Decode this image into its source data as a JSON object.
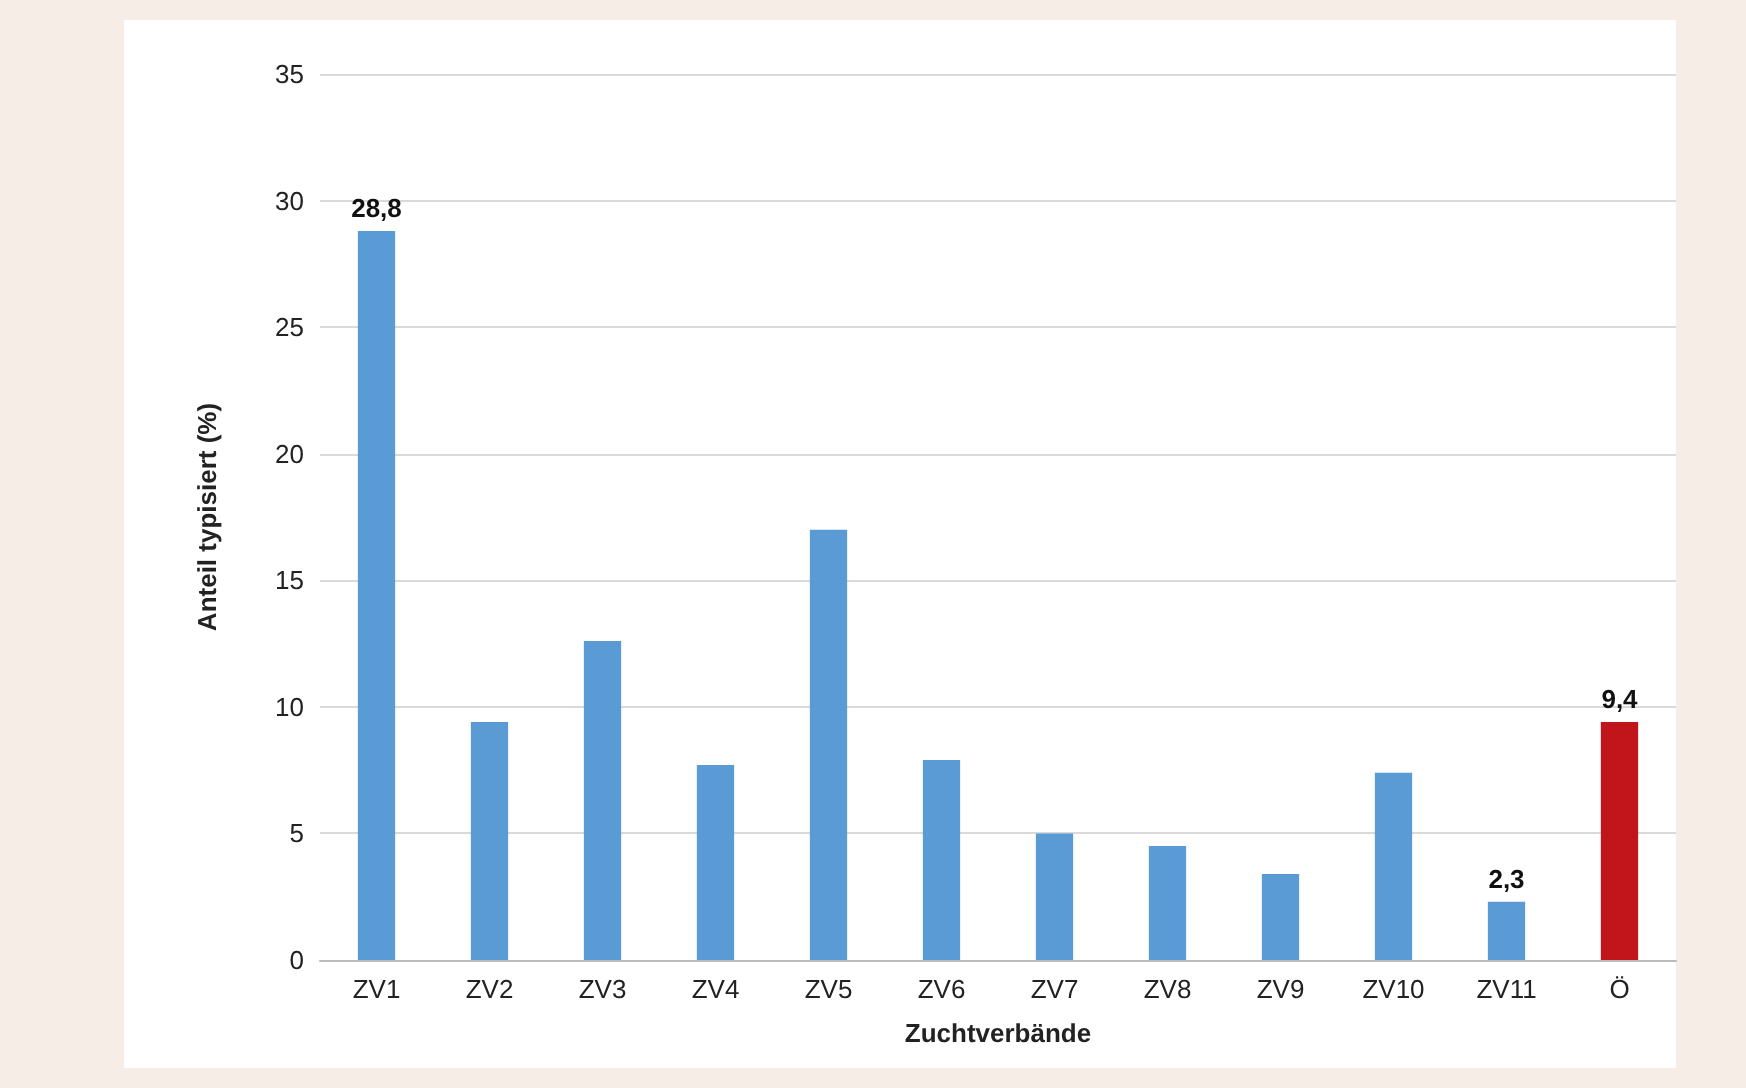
{
  "chart_data": {
    "type": "bar",
    "xlabel": "Zuchtverbände",
    "ylabel": "Anteil typisiert (%)",
    "categories": [
      "ZV1",
      "ZV2",
      "ZV3",
      "ZV4",
      "ZV5",
      "ZV6",
      "ZV7",
      "ZV8",
      "ZV9",
      "ZV10",
      "ZV11",
      "Ö"
    ],
    "values": [
      28.8,
      9.4,
      12.6,
      7.7,
      17.0,
      7.9,
      5.0,
      4.5,
      3.4,
      7.4,
      2.3,
      9.4
    ],
    "colors": [
      "#5b9bd5",
      "#5b9bd5",
      "#5b9bd5",
      "#5b9bd5",
      "#5b9bd5",
      "#5b9bd5",
      "#5b9bd5",
      "#5b9bd5",
      "#5b9bd5",
      "#5b9bd5",
      "#5b9bd5",
      "#c0161b"
    ],
    "value_labels": [
      "28,8",
      null,
      null,
      null,
      null,
      null,
      null,
      null,
      null,
      null,
      "2,3",
      "9,4"
    ],
    "ylim": [
      0,
      35
    ],
    "yticks": [
      0,
      5,
      10,
      15,
      20,
      25,
      30,
      35
    ],
    "grid": "y"
  }
}
